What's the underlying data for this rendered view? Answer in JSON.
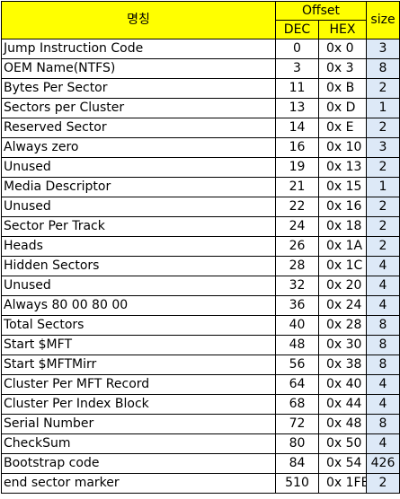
{
  "header": {
    "name": "명칭",
    "offset": "Offset",
    "dec": "DEC",
    "hex": "HEX",
    "size": "size"
  },
  "colors": {
    "header_bg": "#ffff00",
    "size_bg": "#dde9f7"
  },
  "rows": [
    {
      "name": "Jump Instruction Code",
      "dec": "0",
      "hex": "0x 0",
      "size": "3"
    },
    {
      "name": "OEM Name(NTFS)",
      "dec": "3",
      "hex": "0x 3",
      "size": "8"
    },
    {
      "name": "Bytes Per Sector",
      "dec": "11",
      "hex": "0x B",
      "size": "2"
    },
    {
      "name": "Sectors per Cluster",
      "dec": "13",
      "hex": "0x D",
      "size": "1"
    },
    {
      "name": "Reserved Sector",
      "dec": "14",
      "hex": "0x E",
      "size": "2"
    },
    {
      "name": "Always zero",
      "dec": "16",
      "hex": "0x 10",
      "size": "3"
    },
    {
      "name": "Unused",
      "dec": "19",
      "hex": "0x 13",
      "size": "2"
    },
    {
      "name": "Media Descriptor",
      "dec": "21",
      "hex": "0x 15",
      "size": "1"
    },
    {
      "name": "Unused",
      "dec": "22",
      "hex": "0x 16",
      "size": "2"
    },
    {
      "name": "Sector Per Track",
      "dec": "24",
      "hex": "0x 18",
      "size": "2"
    },
    {
      "name": "Heads",
      "dec": "26",
      "hex": "0x 1A",
      "size": "2"
    },
    {
      "name": "Hidden Sectors",
      "dec": "28",
      "hex": "0x 1C",
      "size": "4"
    },
    {
      "name": "Unused",
      "dec": "32",
      "hex": "0x 20",
      "size": "4"
    },
    {
      "name": "Always 80 00 80 00",
      "dec": "36",
      "hex": "0x 24",
      "size": "4"
    },
    {
      "name": "Total Sectors",
      "dec": "40",
      "hex": "0x 28",
      "size": "8"
    },
    {
      "name": "Start $MFT",
      "dec": "48",
      "hex": "0x 30",
      "size": "8"
    },
    {
      "name": "Start $MFTMirr",
      "dec": "56",
      "hex": "0x 38",
      "size": "8"
    },
    {
      "name": "Cluster Per MFT Record",
      "dec": "64",
      "hex": "0x 40",
      "size": "4"
    },
    {
      "name": "Cluster Per Index Block",
      "dec": "68",
      "hex": "0x 44",
      "size": "4"
    },
    {
      "name": "Serial Number",
      "dec": "72",
      "hex": "0x 48",
      "size": "8"
    },
    {
      "name": "CheckSum",
      "dec": "80",
      "hex": "0x 50",
      "size": "4"
    },
    {
      "name": "Bootstrap code",
      "dec": "84",
      "hex": "0x 54",
      "size": "426"
    },
    {
      "name": "end sector marker",
      "dec": "510",
      "hex": "0x 1FE",
      "size": "2"
    }
  ]
}
